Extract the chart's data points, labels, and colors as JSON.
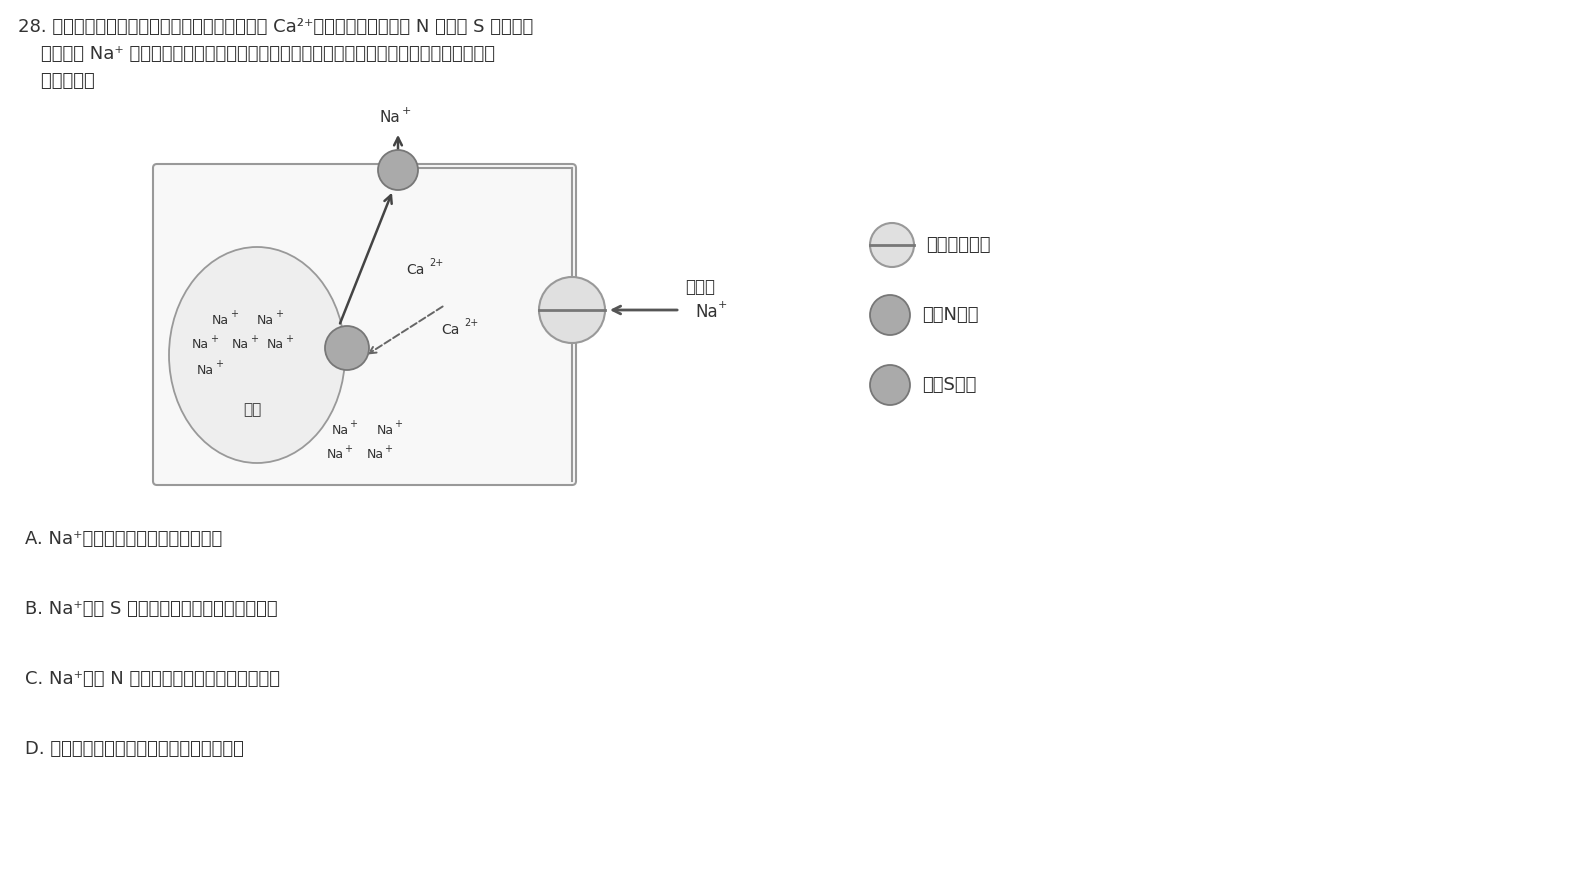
{
  "bg_color": "#ffffff",
  "text_color": "#333333",
  "gray": "#888888",
  "dark_gray": "#555555",
  "light_gray": "#cccccc",
  "protein_fill": "#aaaaaa",
  "protein_edge": "#777777",
  "channel_fill": "#e0e0e0",
  "cell_fill": "#f8f8f8",
  "vacuole_fill": "#eeeeee",
  "title1": "28. 当某耐盐植物处于高盐环境中时，其根细胞内 Ca²⁺浓度升高，通过激活 N 蛋白和 S 蛋白，使",
  "title2": "    细胞质中 Na⁺ 的浓度恢复正常水平，缓解蛋白质变性，其耐盐机制如下图所示。下列相关叙",
  "title3": "    述错误的是",
  "opt_A": "A. Na⁺通过协助扩散的方式进入细胞",
  "opt_B": "B. Na⁺通过 S 蛋白以协助扩散的方式排出细胞",
  "opt_C": "C. Na⁺通过 N 蛋白以主动运输的方式运入液泡",
  "opt_D": "D. 若胞内蛋白质变性，则该蛋白贤功能丧失",
  "lbl_channel": "表示通道蛋白",
  "lbl_N": "表示N蛋白",
  "lbl_S": "表示S蛋白",
  "lbl_high": "高浓度",
  "lbl_vacuole": "液泡"
}
